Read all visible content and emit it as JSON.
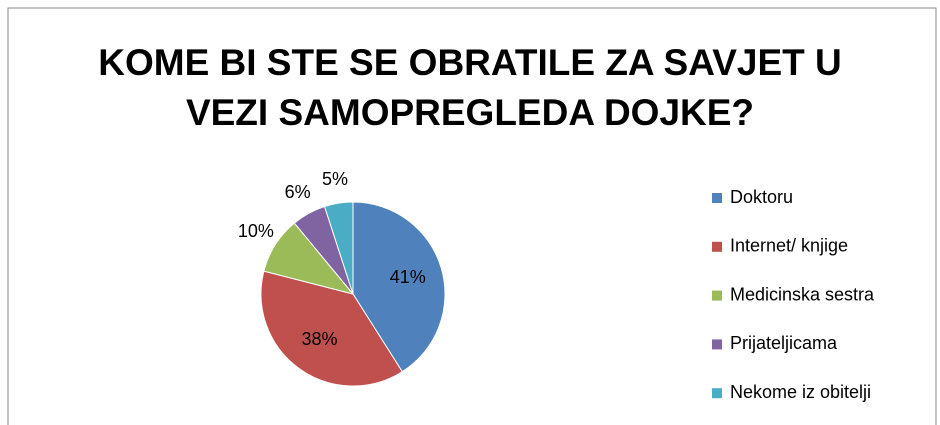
{
  "chart_data": {
    "type": "pie",
    "title": "KOME BI STE SE OBRATILE ZA SAVJET U VEZI SAMOPREGLEDA DOJKE?",
    "categories": [
      "Doktoru",
      "Internet/ knjige",
      "Medicinska sestra",
      "Prijateljicama",
      "Nekome iz obitelji"
    ],
    "values": [
      41,
      38,
      10,
      6,
      5
    ],
    "value_labels": [
      "41%",
      "38%",
      "10%",
      "6%",
      "5%"
    ],
    "colors": [
      "#4f81bd",
      "#c0504d",
      "#9bbb59",
      "#8064a2",
      "#4bacc6"
    ],
    "legend": "right"
  }
}
